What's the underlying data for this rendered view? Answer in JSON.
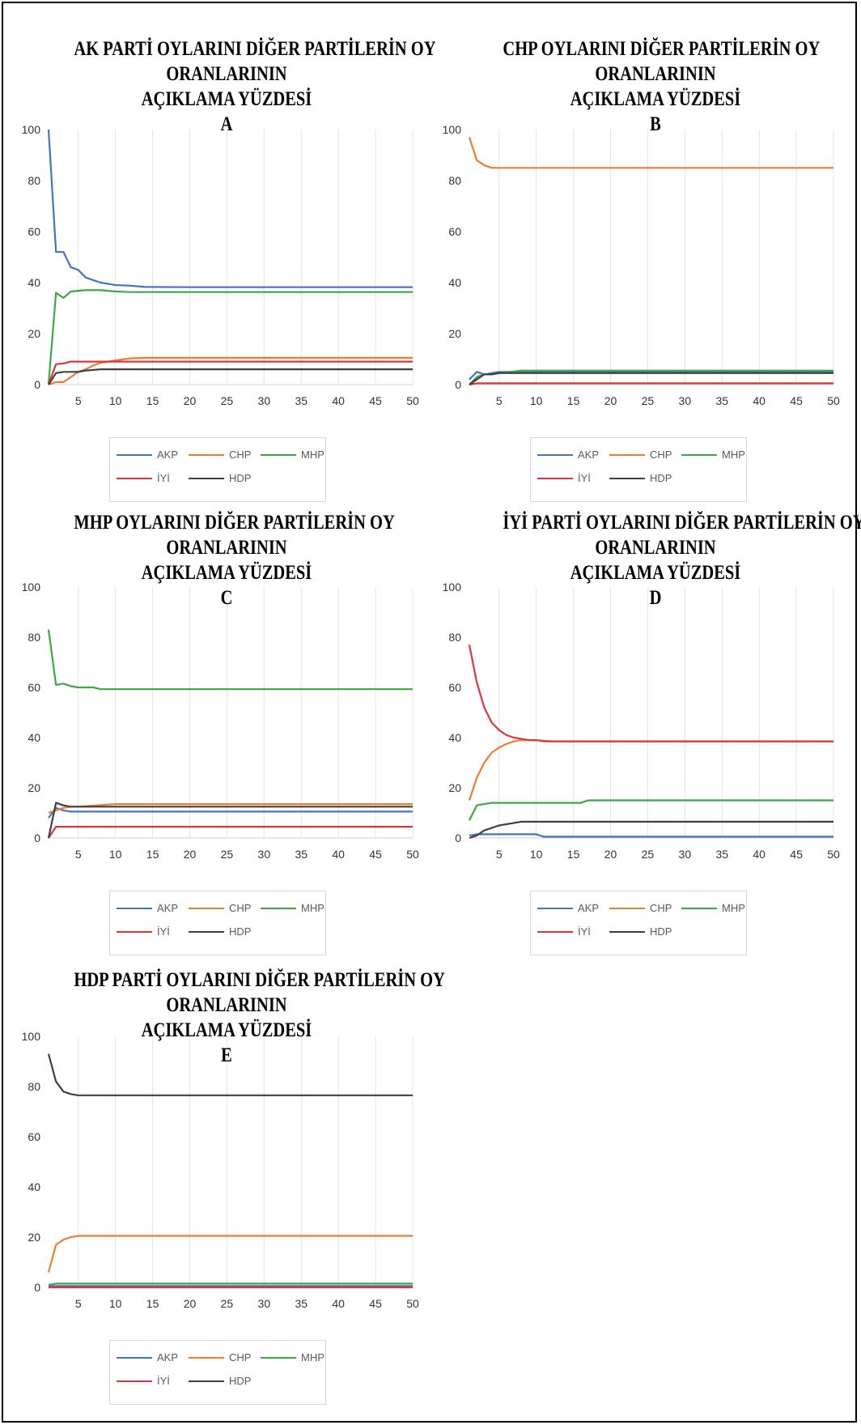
{
  "colors": {
    "AKP": "#4472c4",
    "CHP": "#ed7d31",
    "MHP": "#3aa845",
    "IYI": "#e0343a",
    "HDP": "#404040",
    "grid": "#e3e3e3"
  },
  "chart_data": [
    {
      "type": "line",
      "title_lines": [
        "AK PARTİ OYLARINI DİĞER PARTİLERİN OY",
        "ORANLARININ",
        "AÇIKLAMA YÜZDESİ",
        "A"
      ],
      "x": {
        "min": 1,
        "max": 50,
        "ticks": [
          5,
          10,
          15,
          20,
          25,
          30,
          35,
          40,
          45,
          50
        ]
      },
      "ylim": [
        0,
        100
      ],
      "yticks": [
        0,
        20,
        40,
        60,
        80,
        100
      ],
      "grid": "vertical",
      "legend": {
        "position": "bottom",
        "row1": [
          "AKP",
          "CHP",
          "MHP"
        ],
        "row2": [
          "İYİ",
          "HDP"
        ]
      },
      "series": [
        {
          "name": "AKP",
          "points": [
            [
              1,
              100
            ],
            [
              2,
              52
            ],
            [
              3,
              52
            ],
            [
              4,
              46
            ],
            [
              5,
              45
            ],
            [
              6,
              42
            ],
            [
              7,
              41
            ],
            [
              8,
              40
            ],
            [
              9,
              39.5
            ],
            [
              10,
              39
            ],
            [
              12,
              38.8
            ],
            [
              14,
              38.3
            ],
            [
              20,
              38.2
            ],
            [
              50,
              38.2
            ]
          ]
        },
        {
          "name": "CHP",
          "points": [
            [
              1,
              0
            ],
            [
              2,
              1
            ],
            [
              3,
              1
            ],
            [
              4,
              3
            ],
            [
              5,
              5
            ],
            [
              6,
              6
            ],
            [
              7,
              7.5
            ],
            [
              8,
              8.5
            ],
            [
              9,
              9
            ],
            [
              10,
              9.5
            ],
            [
              12,
              10.3
            ],
            [
              14,
              10.5
            ],
            [
              50,
              10.5
            ]
          ]
        },
        {
          "name": "MHP",
          "points": [
            [
              1,
              0
            ],
            [
              2,
              36
            ],
            [
              3,
              34
            ],
            [
              4,
              36.5
            ],
            [
              5,
              36.8
            ],
            [
              6,
              37
            ],
            [
              8,
              37
            ],
            [
              10,
              36.5
            ],
            [
              12,
              36.3
            ],
            [
              50,
              36.3
            ]
          ]
        },
        {
          "name": "İYİ",
          "points": [
            [
              1,
              0
            ],
            [
              2,
              8
            ],
            [
              3,
              8.3
            ],
            [
              4,
              9
            ],
            [
              5,
              9
            ],
            [
              8,
              9
            ],
            [
              10,
              9
            ],
            [
              50,
              9
            ]
          ]
        },
        {
          "name": "HDP",
          "points": [
            [
              1,
              0
            ],
            [
              2,
              4.5
            ],
            [
              3,
              5
            ],
            [
              4,
              5
            ],
            [
              5,
              5
            ],
            [
              6,
              5.5
            ],
            [
              8,
              6
            ],
            [
              10,
              6
            ],
            [
              50,
              6
            ]
          ]
        }
      ]
    },
    {
      "type": "line",
      "title_lines": [
        "CHP OYLARINI DİĞER PARTİLERİN OY",
        "ORANLARININ",
        "AÇIKLAMA YÜZDESİ",
        "B"
      ],
      "x": {
        "min": 1,
        "max": 50,
        "ticks": [
          5,
          10,
          15,
          20,
          25,
          30,
          35,
          40,
          45,
          50
        ]
      },
      "ylim": [
        0,
        100
      ],
      "yticks": [
        0,
        20,
        40,
        60,
        80,
        100
      ],
      "grid": "vertical",
      "legend": {
        "position": "bottom",
        "row1": [
          "AKP",
          "CHP",
          "MHP"
        ],
        "row2": [
          "İYİ",
          "HDP"
        ]
      },
      "series": [
        {
          "name": "AKP",
          "points": [
            [
              1,
              2
            ],
            [
              2,
              5
            ],
            [
              3,
              4
            ],
            [
              4,
              4.5
            ],
            [
              5,
              5
            ],
            [
              8,
              5
            ],
            [
              50,
              5
            ]
          ]
        },
        {
          "name": "CHP",
          "points": [
            [
              1,
              97
            ],
            [
              2,
              88
            ],
            [
              3,
              86
            ],
            [
              4,
              85
            ],
            [
              5,
              85
            ],
            [
              50,
              85
            ]
          ]
        },
        {
          "name": "MHP",
          "points": [
            [
              1,
              0
            ],
            [
              2,
              3
            ],
            [
              3,
              4
            ],
            [
              4,
              4
            ],
            [
              5,
              4.5
            ],
            [
              8,
              5.5
            ],
            [
              50,
              5.5
            ]
          ]
        },
        {
          "name": "İYİ",
          "points": [
            [
              1,
              0
            ],
            [
              2,
              0.5
            ],
            [
              50,
              0.5
            ]
          ]
        },
        {
          "name": "HDP",
          "points": [
            [
              1,
              0
            ],
            [
              2,
              2
            ],
            [
              3,
              4
            ],
            [
              4,
              4
            ],
            [
              5,
              4.5
            ],
            [
              50,
              4.5
            ]
          ]
        }
      ]
    },
    {
      "type": "line",
      "title_lines": [
        "MHP OYLARINI DİĞER PARTİLERİN OY",
        "ORANLARININ",
        "AÇIKLAMA YÜZDESİ",
        "C"
      ],
      "x": {
        "min": 1,
        "max": 50,
        "ticks": [
          5,
          10,
          15,
          20,
          25,
          30,
          35,
          40,
          45,
          50
        ]
      },
      "ylim": [
        0,
        100
      ],
      "yticks": [
        0,
        20,
        40,
        60,
        80,
        100
      ],
      "grid": "vertical",
      "legend": {
        "position": "bottom",
        "row1": [
          "AKP",
          "CHP",
          "MHP"
        ],
        "row2": [
          "İYİ",
          "HDP"
        ]
      },
      "series": [
        {
          "name": "AKP",
          "points": [
            [
              1,
              8
            ],
            [
              2,
              12
            ],
            [
              3,
              11
            ],
            [
              4,
              10.5
            ],
            [
              5,
              10.5
            ],
            [
              50,
              10.5
            ]
          ]
        },
        {
          "name": "CHP",
          "points": [
            [
              1,
              10
            ],
            [
              2,
              11
            ],
            [
              3,
              12
            ],
            [
              4,
              12.5
            ],
            [
              5,
              12.5
            ],
            [
              10,
              13.5
            ],
            [
              50,
              13.5
            ]
          ]
        },
        {
          "name": "MHP",
          "points": [
            [
              1,
              83
            ],
            [
              2,
              61
            ],
            [
              3,
              61.5
            ],
            [
              4,
              60.5
            ],
            [
              5,
              60
            ],
            [
              7,
              60
            ],
            [
              8,
              59.3
            ],
            [
              50,
              59.3
            ]
          ]
        },
        {
          "name": "İYİ",
          "points": [
            [
              1,
              0
            ],
            [
              2,
              4.5
            ],
            [
              3,
              4.5
            ],
            [
              50,
              4.5
            ]
          ]
        },
        {
          "name": "HDP",
          "points": [
            [
              1,
              0
            ],
            [
              2,
              14
            ],
            [
              3,
              13
            ],
            [
              4,
              12.5
            ],
            [
              5,
              12.5
            ],
            [
              50,
              12.5
            ]
          ]
        }
      ]
    },
    {
      "type": "line",
      "title_lines": [
        "İYİ PARTİ OYLARINI DİĞER PARTİLERİN OY",
        "ORANLARININ",
        "AÇIKLAMA YÜZDESİ",
        "D"
      ],
      "x": {
        "min": 1,
        "max": 50,
        "ticks": [
          5,
          10,
          15,
          20,
          25,
          30,
          35,
          40,
          45,
          50
        ]
      },
      "ylim": [
        0,
        100
      ],
      "yticks": [
        0,
        20,
        40,
        60,
        80,
        100
      ],
      "grid": "vertical",
      "legend": {
        "position": "bottom",
        "row1": [
          "AKP",
          "CHP",
          "MHP"
        ],
        "row2": [
          "İYİ",
          "HDP"
        ]
      },
      "series": [
        {
          "name": "AKP",
          "points": [
            [
              1,
              1
            ],
            [
              2,
              1.5
            ],
            [
              10,
              1.5
            ],
            [
              11,
              0.5
            ],
            [
              50,
              0.5
            ]
          ]
        },
        {
          "name": "CHP",
          "points": [
            [
              1,
              15
            ],
            [
              2,
              24
            ],
            [
              3,
              30
            ],
            [
              4,
              34
            ],
            [
              5,
              36
            ],
            [
              6,
              37.5
            ],
            [
              7,
              38.5
            ],
            [
              8,
              39
            ],
            [
              10,
              39
            ],
            [
              12,
              38.5
            ],
            [
              50,
              38.5
            ]
          ]
        },
        {
          "name": "MHP",
          "points": [
            [
              1,
              7
            ],
            [
              2,
              13
            ],
            [
              3,
              13.5
            ],
            [
              4,
              14
            ],
            [
              5,
              14
            ],
            [
              16,
              14
            ],
            [
              17,
              15
            ],
            [
              50,
              15
            ]
          ]
        },
        {
          "name": "İYİ",
          "points": [
            [
              1,
              77
            ],
            [
              2,
              62
            ],
            [
              3,
              52
            ],
            [
              4,
              46
            ],
            [
              5,
              43
            ],
            [
              6,
              41
            ],
            [
              7,
              40
            ],
            [
              8,
              39.5
            ],
            [
              9,
              39
            ],
            [
              10,
              39
            ],
            [
              11,
              38.5
            ],
            [
              12,
              38.5
            ],
            [
              50,
              38.5
            ]
          ]
        },
        {
          "name": "HDP",
          "points": [
            [
              1,
              0
            ],
            [
              2,
              1
            ],
            [
              3,
              3
            ],
            [
              4,
              4
            ],
            [
              5,
              5
            ],
            [
              6,
              5.5
            ],
            [
              7,
              6
            ],
            [
              8,
              6.5
            ],
            [
              50,
              6.5
            ]
          ]
        }
      ]
    },
    {
      "type": "line",
      "title_lines": [
        "HDP PARTİ OYLARINI DİĞER PARTİLERİN OY",
        "ORANLARININ",
        "AÇIKLAMA YÜZDESİ",
        "E"
      ],
      "x": {
        "min": 1,
        "max": 50,
        "ticks": [
          5,
          10,
          15,
          20,
          25,
          30,
          35,
          40,
          45,
          50
        ]
      },
      "ylim": [
        0,
        100
      ],
      "yticks": [
        0,
        20,
        40,
        60,
        80,
        100
      ],
      "grid": "vertical",
      "legend": {
        "position": "bottom",
        "row1": [
          "AKP",
          "CHP",
          "MHP"
        ],
        "row2": [
          "İYİ",
          "HDP"
        ]
      },
      "series": [
        {
          "name": "AKP",
          "points": [
            [
              1,
              0.5
            ],
            [
              50,
              0.5
            ]
          ]
        },
        {
          "name": "CHP",
          "points": [
            [
              1,
              6
            ],
            [
              2,
              17
            ],
            [
              3,
              19
            ],
            [
              4,
              20
            ],
            [
              5,
              20.5
            ],
            [
              50,
              20.5
            ]
          ]
        },
        {
          "name": "MHP",
          "points": [
            [
              1,
              1
            ],
            [
              2,
              1.5
            ],
            [
              50,
              1.5
            ]
          ]
        },
        {
          "name": "İYİ",
          "points": [
            [
              1,
              0
            ],
            [
              50,
              0
            ]
          ]
        },
        {
          "name": "HDP",
          "points": [
            [
              1,
              93
            ],
            [
              2,
              82
            ],
            [
              3,
              78
            ],
            [
              4,
              77
            ],
            [
              5,
              76.5
            ],
            [
              50,
              76.5
            ]
          ]
        }
      ]
    }
  ]
}
